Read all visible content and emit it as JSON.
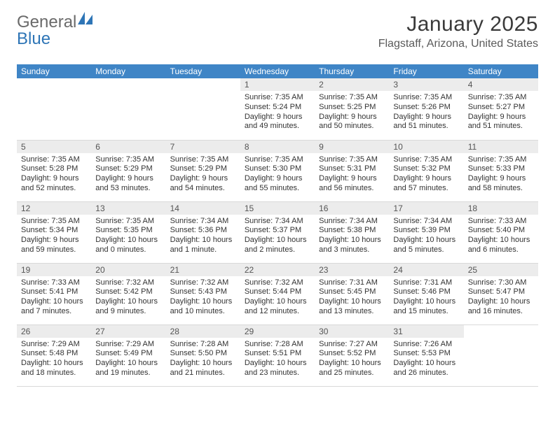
{
  "logo": {
    "word1": "General",
    "word2": "Blue",
    "shape_color": "#2e75b6",
    "word1_color": "#6a6a6a"
  },
  "title": "January 2025",
  "location": "Flagstaff, Arizona, United States",
  "header_bg": "#3f85c6",
  "daynum_bg": "#ececec",
  "row_border": "#d9d9d9",
  "weekdays": [
    "Sunday",
    "Monday",
    "Tuesday",
    "Wednesday",
    "Thursday",
    "Friday",
    "Saturday"
  ],
  "weeks": [
    [
      null,
      null,
      null,
      {
        "n": "1",
        "sr": "7:35 AM",
        "ss": "5:24 PM",
        "dl": "9 hours and 49 minutes."
      },
      {
        "n": "2",
        "sr": "7:35 AM",
        "ss": "5:25 PM",
        "dl": "9 hours and 50 minutes."
      },
      {
        "n": "3",
        "sr": "7:35 AM",
        "ss": "5:26 PM",
        "dl": "9 hours and 51 minutes."
      },
      {
        "n": "4",
        "sr": "7:35 AM",
        "ss": "5:27 PM",
        "dl": "9 hours and 51 minutes."
      }
    ],
    [
      {
        "n": "5",
        "sr": "7:35 AM",
        "ss": "5:28 PM",
        "dl": "9 hours and 52 minutes."
      },
      {
        "n": "6",
        "sr": "7:35 AM",
        "ss": "5:29 PM",
        "dl": "9 hours and 53 minutes."
      },
      {
        "n": "7",
        "sr": "7:35 AM",
        "ss": "5:29 PM",
        "dl": "9 hours and 54 minutes."
      },
      {
        "n": "8",
        "sr": "7:35 AM",
        "ss": "5:30 PM",
        "dl": "9 hours and 55 minutes."
      },
      {
        "n": "9",
        "sr": "7:35 AM",
        "ss": "5:31 PM",
        "dl": "9 hours and 56 minutes."
      },
      {
        "n": "10",
        "sr": "7:35 AM",
        "ss": "5:32 PM",
        "dl": "9 hours and 57 minutes."
      },
      {
        "n": "11",
        "sr": "7:35 AM",
        "ss": "5:33 PM",
        "dl": "9 hours and 58 minutes."
      }
    ],
    [
      {
        "n": "12",
        "sr": "7:35 AM",
        "ss": "5:34 PM",
        "dl": "9 hours and 59 minutes."
      },
      {
        "n": "13",
        "sr": "7:35 AM",
        "ss": "5:35 PM",
        "dl": "10 hours and 0 minutes."
      },
      {
        "n": "14",
        "sr": "7:34 AM",
        "ss": "5:36 PM",
        "dl": "10 hours and 1 minute."
      },
      {
        "n": "15",
        "sr": "7:34 AM",
        "ss": "5:37 PM",
        "dl": "10 hours and 2 minutes."
      },
      {
        "n": "16",
        "sr": "7:34 AM",
        "ss": "5:38 PM",
        "dl": "10 hours and 3 minutes."
      },
      {
        "n": "17",
        "sr": "7:34 AM",
        "ss": "5:39 PM",
        "dl": "10 hours and 5 minutes."
      },
      {
        "n": "18",
        "sr": "7:33 AM",
        "ss": "5:40 PM",
        "dl": "10 hours and 6 minutes."
      }
    ],
    [
      {
        "n": "19",
        "sr": "7:33 AM",
        "ss": "5:41 PM",
        "dl": "10 hours and 7 minutes."
      },
      {
        "n": "20",
        "sr": "7:32 AM",
        "ss": "5:42 PM",
        "dl": "10 hours and 9 minutes."
      },
      {
        "n": "21",
        "sr": "7:32 AM",
        "ss": "5:43 PM",
        "dl": "10 hours and 10 minutes."
      },
      {
        "n": "22",
        "sr": "7:32 AM",
        "ss": "5:44 PM",
        "dl": "10 hours and 12 minutes."
      },
      {
        "n": "23",
        "sr": "7:31 AM",
        "ss": "5:45 PM",
        "dl": "10 hours and 13 minutes."
      },
      {
        "n": "24",
        "sr": "7:31 AM",
        "ss": "5:46 PM",
        "dl": "10 hours and 15 minutes."
      },
      {
        "n": "25",
        "sr": "7:30 AM",
        "ss": "5:47 PM",
        "dl": "10 hours and 16 minutes."
      }
    ],
    [
      {
        "n": "26",
        "sr": "7:29 AM",
        "ss": "5:48 PM",
        "dl": "10 hours and 18 minutes."
      },
      {
        "n": "27",
        "sr": "7:29 AM",
        "ss": "5:49 PM",
        "dl": "10 hours and 19 minutes."
      },
      {
        "n": "28",
        "sr": "7:28 AM",
        "ss": "5:50 PM",
        "dl": "10 hours and 21 minutes."
      },
      {
        "n": "29",
        "sr": "7:28 AM",
        "ss": "5:51 PM",
        "dl": "10 hours and 23 minutes."
      },
      {
        "n": "30",
        "sr": "7:27 AM",
        "ss": "5:52 PM",
        "dl": "10 hours and 25 minutes."
      },
      {
        "n": "31",
        "sr": "7:26 AM",
        "ss": "5:53 PM",
        "dl": "10 hours and 26 minutes."
      },
      null
    ]
  ],
  "labels": {
    "sunrise": "Sunrise:",
    "sunset": "Sunset:",
    "daylight": "Daylight:"
  }
}
